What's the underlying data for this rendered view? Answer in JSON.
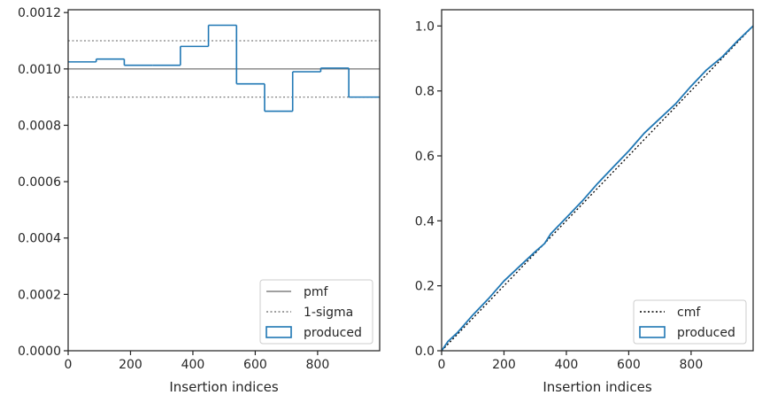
{
  "chart_data": [
    {
      "type": "line",
      "xlabel": "Insertion indices",
      "ylabel": "",
      "xlim": [
        0,
        999
      ],
      "ylim": [
        0,
        0.00121
      ],
      "xticks": [
        0,
        200,
        400,
        600,
        800
      ],
      "xtick_labels": [
        "0",
        "200",
        "400",
        "600",
        "800"
      ],
      "yticks": [
        0,
        0.0002,
        0.0004,
        0.0006,
        0.0008,
        0.001,
        0.0012
      ],
      "ytick_labels": [
        "0.0000",
        "0.0002",
        "0.0004",
        "0.0006",
        "0.0008",
        "0.0010",
        "0.0012"
      ],
      "legend_position": "lower-right",
      "series": [
        {
          "name": "pmf",
          "style": "solid",
          "color": "#808080",
          "x": [
            0,
            999
          ],
          "values": [
            0.001,
            0.001
          ]
        },
        {
          "name": "1-sigma",
          "style": "dotted",
          "color": "#808080",
          "x": [
            0,
            999
          ],
          "upper": 0.0011,
          "lower": 0.0009
        },
        {
          "name": "produced",
          "style": "step",
          "color": "#1f77b4",
          "bin_edges": [
            0,
            90,
            180,
            270,
            360,
            450,
            540,
            630,
            720,
            810,
            900,
            999
          ],
          "values": [
            0.001025,
            0.001035,
            0.001013,
            0.001013,
            0.00108,
            0.001155,
            0.000947,
            0.00085,
            0.00099,
            0.001003,
            0.0009
          ]
        }
      ]
    },
    {
      "type": "line",
      "xlabel": "Insertion indices",
      "ylabel": "",
      "xlim": [
        0,
        999
      ],
      "ylim": [
        0,
        1.05
      ],
      "xticks": [
        0,
        200,
        400,
        600,
        800
      ],
      "xtick_labels": [
        "0",
        "200",
        "400",
        "600",
        "800"
      ],
      "yticks": [
        0,
        0.2,
        0.4,
        0.6,
        0.8,
        1.0
      ],
      "ytick_labels": [
        "0.0",
        "0.2",
        "0.4",
        "0.6",
        "0.8",
        "1.0"
      ],
      "legend_position": "lower-right",
      "series": [
        {
          "name": "cmf",
          "style": "dotted",
          "color": "#000000",
          "x": [
            0,
            999
          ],
          "values": [
            0,
            1.0
          ]
        },
        {
          "name": "produced",
          "style": "solid",
          "color": "#1f77b4",
          "x": [
            0,
            20,
            50,
            100,
            150,
            200,
            250,
            300,
            330,
            350,
            400,
            450,
            500,
            550,
            600,
            650,
            700,
            750,
            800,
            850,
            900,
            950,
            999
          ],
          "values": [
            0,
            0.028,
            0.055,
            0.11,
            0.16,
            0.215,
            0.26,
            0.305,
            0.33,
            0.36,
            0.41,
            0.46,
            0.515,
            0.565,
            0.615,
            0.67,
            0.715,
            0.76,
            0.815,
            0.865,
            0.905,
            0.955,
            1.0
          ]
        }
      ]
    }
  ]
}
